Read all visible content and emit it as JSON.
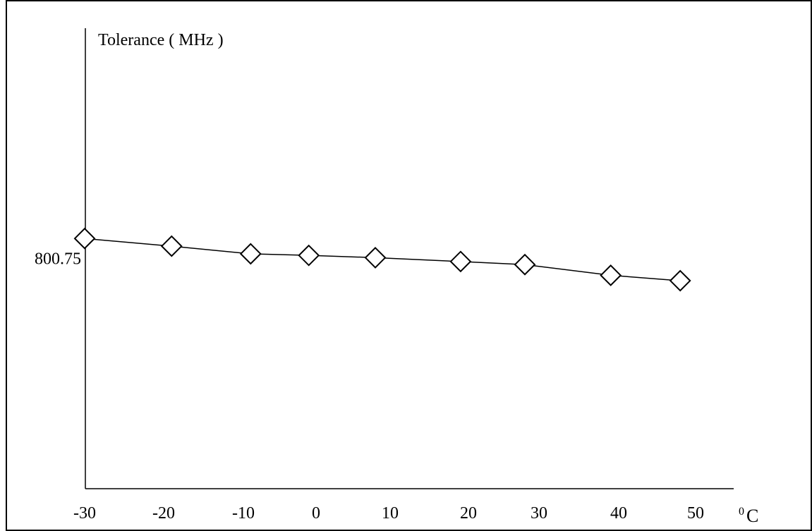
{
  "chart_data": {
    "type": "line",
    "title": "",
    "ylabel": "Tolerance ( MHz )",
    "xlabel_unit_superscript": "0",
    "xlabel_unit": "C",
    "x": [
      -30,
      -20,
      -10,
      0,
      10,
      20,
      30,
      40,
      50
    ],
    "x_tick_labels": [
      "-30",
      "-20",
      "-10",
      "0",
      "10",
      "20",
      "30",
      "40",
      "50"
    ],
    "y_tick_labels": [
      "800.75"
    ],
    "y_tick_values": [
      800.75
    ],
    "series": [
      {
        "marker": "diamond",
        "color": "#000000",
        "values": [
          {
            "x": -30,
            "y": 800.776
          },
          {
            "x": -19,
            "y": 800.766
          },
          {
            "x": -9,
            "y": 800.756
          },
          {
            "x": -1,
            "y": 800.754
          },
          {
            "x": 8,
            "y": 800.751
          },
          {
            "x": 19,
            "y": 800.746
          },
          {
            "x": 28,
            "y": 800.742
          },
          {
            "x": 39,
            "y": 800.728
          },
          {
            "x": 48,
            "y": 800.721
          }
        ]
      }
    ],
    "xlim": [
      -30,
      50
    ],
    "ylim": [
      800.45,
      801.05
    ],
    "grid": false,
    "legend": "none"
  }
}
